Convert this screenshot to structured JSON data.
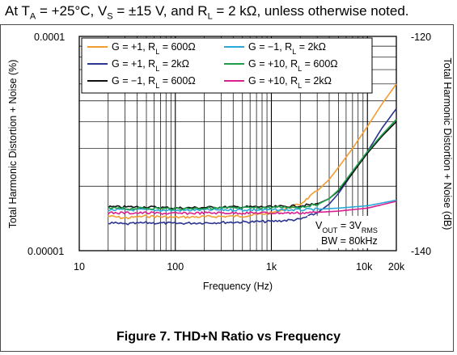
{
  "header": {
    "prefix": "At T",
    "ta_sub": "A",
    "mid1": " = +25°C, V",
    "vs_sub": "S",
    "mid2": " = ±15 V, and R",
    "rl_sub": "L",
    "rest": " = 2 kΩ, unless otherwise noted."
  },
  "caption": "Figure 7. THD+N Ratio vs Frequency",
  "chart_data": {
    "type": "line",
    "title": "",
    "xlabel": "Frequency (Hz)",
    "ylabel_left": "Total Harmonic Distortion + Noise (%)",
    "ylabel_right": "Total Harmonic Distortion + Noise (dB)",
    "xscale": "log",
    "yscale": "log",
    "xlim": [
      10,
      20000
    ],
    "ylim": [
      1e-05,
      0.0001
    ],
    "xticks": [
      10,
      100,
      1000,
      10000,
      20000
    ],
    "xtick_labels": [
      "10",
      "100",
      "1k",
      "10k",
      "20k"
    ],
    "yticks_left": [
      1e-05,
      0.0001
    ],
    "ytick_labels_left": [
      "0.00001",
      "0.0001"
    ],
    "ytick_labels_right": [
      "-140",
      "-120"
    ],
    "grid": true,
    "legend_position": "top",
    "annotation": {
      "line1_main": "V",
      "line1_sub": "OUT",
      "line1_rest": " = 3V",
      "line1_sub2": "RMS",
      "line2": "BW = 80kHz"
    },
    "series": [
      {
        "name": "G = +1, R_L = 600Ω",
        "label": {
          "pre": "G = +1, R",
          "sub": "L",
          "post": " = 600Ω"
        },
        "color": "#f39c34",
        "x": [
          20,
          30,
          50,
          100,
          200,
          500,
          1000,
          2000,
          3000,
          4000,
          5000,
          7000,
          10000,
          14000,
          20000
        ],
        "y": [
          1.45e-05,
          1.42e-05,
          1.45e-05,
          1.43e-05,
          1.44e-05,
          1.45e-05,
          1.5e-05,
          1.65e-05,
          1.9e-05,
          2.15e-05,
          2.45e-05,
          3e-05,
          3.8e-05,
          4.8e-05,
          6e-05
        ]
      },
      {
        "name": "G = +1, R_L = 2kΩ",
        "label": {
          "pre": "G = +1, R",
          "sub": "L",
          "post": " = 2kΩ"
        },
        "color": "#2c3590",
        "x": [
          20,
          30,
          50,
          100,
          200,
          500,
          1000,
          2000,
          3000,
          4000,
          5000,
          7000,
          10000,
          14000,
          20000
        ],
        "y": [
          1.35e-05,
          1.33e-05,
          1.35e-05,
          1.34e-05,
          1.35e-05,
          1.36e-05,
          1.37e-05,
          1.4e-05,
          1.5e-05,
          1.65e-05,
          1.85e-05,
          2.3e-05,
          2.9e-05,
          3.7e-05,
          4.6e-05
        ]
      },
      {
        "name": "G = -1, R_L = 600Ω",
        "label": {
          "pre": "G = −1, R",
          "sub": "L",
          "post": " = 600Ω"
        },
        "color": "#111111",
        "x": [
          20,
          30,
          50,
          100,
          200,
          500,
          1000,
          2000,
          3000,
          4000,
          5000,
          7000,
          10000,
          14000,
          20000
        ],
        "y": [
          1.6e-05,
          1.6e-05,
          1.6e-05,
          1.58e-05,
          1.59e-05,
          1.6e-05,
          1.6e-05,
          1.62e-05,
          1.65e-05,
          1.75e-05,
          1.9e-05,
          2.3e-05,
          2.85e-05,
          3.4e-05,
          4e-05
        ]
      },
      {
        "name": "G = -1, R_L = 2kΩ",
        "label": {
          "pre": "G = −1, R",
          "sub": "L",
          "post": " = 2kΩ"
        },
        "color": "#29a8d8",
        "x": [
          20,
          30,
          50,
          100,
          200,
          500,
          1000,
          2000,
          3000,
          5000,
          10000,
          20000
        ],
        "y": [
          1.55e-05,
          1.55e-05,
          1.55e-05,
          1.54e-05,
          1.55e-05,
          1.55e-05,
          1.55e-05,
          1.55e-05,
          1.56e-05,
          1.58e-05,
          1.62e-05,
          1.72e-05
        ]
      },
      {
        "name": "G = +10, R_L = 600Ω",
        "label": {
          "pre": "G = +10, R",
          "sub": "L",
          "post": " = 600Ω"
        },
        "color": "#1e9e4a",
        "x": [
          20,
          30,
          50,
          100,
          200,
          500,
          1000,
          2000,
          3000,
          4000,
          5000,
          7000,
          10000,
          14000,
          20000
        ],
        "y": [
          1.58e-05,
          1.57e-05,
          1.58e-05,
          1.57e-05,
          1.58e-05,
          1.58e-05,
          1.59e-05,
          1.6e-05,
          1.64e-05,
          1.75e-05,
          1.92e-05,
          2.35e-05,
          2.9e-05,
          3.45e-05,
          4.1e-05
        ]
      },
      {
        "name": "G = +10, R_L = 2kΩ",
        "label": {
          "pre": "G = +10, R",
          "sub": "L",
          "post": " = 2kΩ"
        },
        "color": "#d81f8e",
        "x": [
          20,
          30,
          50,
          100,
          200,
          500,
          1000,
          2000,
          3000,
          5000,
          10000,
          20000
        ],
        "y": [
          1.5e-05,
          1.5e-05,
          1.5e-05,
          1.49e-05,
          1.5e-05,
          1.5e-05,
          1.5e-05,
          1.5e-05,
          1.51e-05,
          1.53e-05,
          1.58e-05,
          1.7e-05
        ]
      }
    ]
  }
}
